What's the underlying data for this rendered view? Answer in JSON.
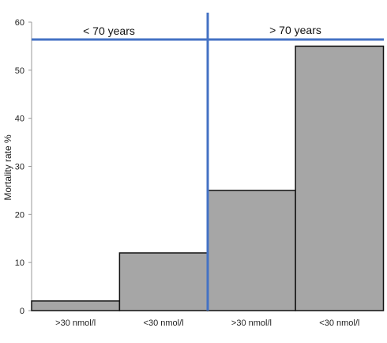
{
  "chart_data": {
    "type": "bar",
    "ylabel": "Mortality rate %",
    "ylim": [
      0,
      60
    ],
    "yticks": [
      0,
      10,
      20,
      30,
      40,
      50,
      60
    ],
    "categories": [
      ">30 nmol/l",
      "<30 nmol/l",
      ">30 nmol/l",
      "<30 nmol/l"
    ],
    "values": [
      2,
      12,
      25,
      55
    ],
    "groups": [
      {
        "label": "< 70 years",
        "categories": [
          0,
          1
        ]
      },
      {
        "label": "> 70 years",
        "categories": [
          2,
          3
        ]
      }
    ],
    "bar_color": "#a6a6a6",
    "divider_color": "#4472c4",
    "grid": false
  }
}
